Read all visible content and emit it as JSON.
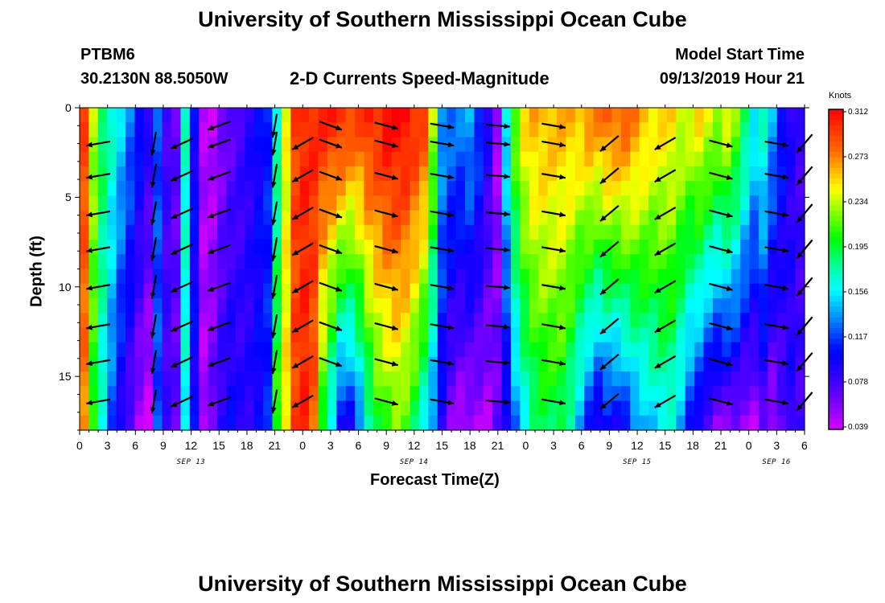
{
  "page": {
    "title_top": "University of Southern Mississippi Ocean Cube",
    "title_bottom": "University of Southern Mississippi Ocean Cube",
    "station": "PTBM6",
    "location": "30.2130N 88.5050W",
    "subtitle": "2-D Currents Speed-Magnitude",
    "model_label": "Model Start Time",
    "model_time": "09/13/2019 Hour 21"
  },
  "chart_data": {
    "type": "heatmap",
    "title": "2-D Currents Speed-Magnitude",
    "xlabel": "Forecast Time(Z)",
    "ylabel": "Depth (ft)",
    "x_ticks": [
      "0",
      "3",
      "6",
      "9",
      "12",
      "15",
      "18",
      "21",
      "0",
      "3",
      "6",
      "9",
      "12",
      "15",
      "18",
      "21",
      "0",
      "3",
      "6",
      "9",
      "12",
      "15",
      "18",
      "21",
      "0",
      "3",
      "6"
    ],
    "x_hours_range": [
      0,
      78
    ],
    "date_labels": [
      {
        "label": "SEP 13",
        "hour": 12
      },
      {
        "label": "SEP 14",
        "hour": 36
      },
      {
        "label": "SEP 15",
        "hour": 60
      },
      {
        "label": "SEP 16",
        "hour": 75
      }
    ],
    "y_ticks": [
      "0",
      "5",
      "10",
      "15"
    ],
    "y_tick_values": [
      0,
      5,
      10,
      15
    ],
    "ylim": [
      0,
      18
    ],
    "colorbar": {
      "unit": "Knots",
      "ticks": [
        "0.312",
        "0.273",
        "0.234",
        "0.195",
        "0.156",
        "0.117",
        "0.078",
        "0.039"
      ],
      "range": [
        0.039,
        0.312
      ]
    },
    "speed_profile_by_hour": [
      {
        "hour": 0,
        "surface": 0.29,
        "bottom": 0.27
      },
      {
        "hour": 1,
        "surface": 0.23,
        "bottom": 0.2
      },
      {
        "hour": 2,
        "surface": 0.19,
        "bottom": 0.16
      },
      {
        "hour": 3,
        "surface": 0.17,
        "bottom": 0.12
      },
      {
        "hour": 4,
        "surface": 0.15,
        "bottom": 0.09
      },
      {
        "hour": 5,
        "surface": 0.13,
        "bottom": 0.07
      },
      {
        "hour": 6,
        "surface": 0.11,
        "bottom": 0.05
      },
      {
        "hour": 7,
        "surface": 0.09,
        "bottom": 0.04
      },
      {
        "hour": 8,
        "surface": 0.12,
        "bottom": 0.12
      },
      {
        "hour": 9,
        "surface": 0.08,
        "bottom": 0.08
      },
      {
        "hour": 10,
        "surface": 0.07,
        "bottom": 0.07
      },
      {
        "hour": 11,
        "surface": 0.17,
        "bottom": 0.16
      },
      {
        "hour": 12,
        "surface": 0.1,
        "bottom": 0.1
      },
      {
        "hour": 13,
        "surface": 0.05,
        "bottom": 0.05
      },
      {
        "hour": 14,
        "surface": 0.045,
        "bottom": 0.07
      },
      {
        "hour": 15,
        "surface": 0.06,
        "bottom": 0.09
      },
      {
        "hour": 16,
        "surface": 0.07,
        "bottom": 0.1
      },
      {
        "hour": 17,
        "surface": 0.08,
        "bottom": 0.09
      },
      {
        "hour": 18,
        "surface": 0.09,
        "bottom": 0.09
      },
      {
        "hour": 19,
        "surface": 0.1,
        "bottom": 0.1
      },
      {
        "hour": 20,
        "surface": 0.11,
        "bottom": 0.11
      },
      {
        "hour": 21,
        "surface": 0.17,
        "bottom": 0.21
      },
      {
        "hour": 22,
        "surface": 0.24,
        "bottom": 0.25
      },
      {
        "hour": 23,
        "surface": 0.29,
        "bottom": 0.29
      },
      {
        "hour": 24,
        "surface": 0.3,
        "bottom": 0.3
      },
      {
        "hour": 25,
        "surface": 0.3,
        "bottom": 0.28
      },
      {
        "hour": 26,
        "surface": 0.3,
        "bottom": 0.2
      },
      {
        "hour": 27,
        "surface": 0.3,
        "bottom": 0.15
      },
      {
        "hour": 28,
        "surface": 0.3,
        "bottom": 0.1
      },
      {
        "hour": 29,
        "surface": 0.29,
        "bottom": 0.1
      },
      {
        "hour": 30,
        "surface": 0.29,
        "bottom": 0.13
      },
      {
        "hour": 31,
        "surface": 0.3,
        "bottom": 0.17
      },
      {
        "hour": 32,
        "surface": 0.3,
        "bottom": 0.2
      },
      {
        "hour": 33,
        "surface": 0.31,
        "bottom": 0.21
      },
      {
        "hour": 34,
        "surface": 0.31,
        "bottom": 0.22
      },
      {
        "hour": 35,
        "surface": 0.31,
        "bottom": 0.21
      },
      {
        "hour": 36,
        "surface": 0.3,
        "bottom": 0.19
      },
      {
        "hour": 37,
        "surface": 0.29,
        "bottom": 0.16
      },
      {
        "hour": 38,
        "surface": 0.23,
        "bottom": 0.13
      },
      {
        "hour": 39,
        "surface": 0.14,
        "bottom": 0.09
      },
      {
        "hour": 40,
        "surface": 0.13,
        "bottom": 0.06
      },
      {
        "hour": 41,
        "surface": 0.13,
        "bottom": 0.05
      },
      {
        "hour": 42,
        "surface": 0.14,
        "bottom": 0.05
      },
      {
        "hour": 43,
        "surface": 0.12,
        "bottom": 0.05
      },
      {
        "hour": 44,
        "surface": 0.09,
        "bottom": 0.05
      },
      {
        "hour": 45,
        "surface": 0.05,
        "bottom": 0.07
      },
      {
        "hour": 46,
        "surface": 0.16,
        "bottom": 0.09
      },
      {
        "hour": 47,
        "surface": 0.22,
        "bottom": 0.13
      },
      {
        "hour": 48,
        "surface": 0.25,
        "bottom": 0.16
      },
      {
        "hour": 49,
        "surface": 0.26,
        "bottom": 0.18
      },
      {
        "hour": 50,
        "surface": 0.26,
        "bottom": 0.19
      },
      {
        "hour": 51,
        "surface": 0.26,
        "bottom": 0.19
      },
      {
        "hour": 52,
        "surface": 0.26,
        "bottom": 0.19
      },
      {
        "hour": 53,
        "surface": 0.26,
        "bottom": 0.17
      },
      {
        "hour": 54,
        "surface": 0.26,
        "bottom": 0.14
      },
      {
        "hour": 55,
        "surface": 0.27,
        "bottom": 0.11
      },
      {
        "hour": 56,
        "surface": 0.27,
        "bottom": 0.09
      },
      {
        "hour": 57,
        "surface": 0.28,
        "bottom": 0.1
      },
      {
        "hour": 58,
        "surface": 0.28,
        "bottom": 0.1
      },
      {
        "hour": 59,
        "surface": 0.28,
        "bottom": 0.11
      },
      {
        "hour": 60,
        "surface": 0.27,
        "bottom": 0.13
      },
      {
        "hour": 61,
        "surface": 0.26,
        "bottom": 0.14
      },
      {
        "hour": 62,
        "surface": 0.25,
        "bottom": 0.15
      },
      {
        "hour": 63,
        "surface": 0.25,
        "bottom": 0.16
      },
      {
        "hour": 64,
        "surface": 0.25,
        "bottom": 0.16
      },
      {
        "hour": 65,
        "surface": 0.24,
        "bottom": 0.14
      },
      {
        "hour": 66,
        "surface": 0.24,
        "bottom": 0.11
      },
      {
        "hour": 67,
        "surface": 0.25,
        "bottom": 0.09
      },
      {
        "hour": 68,
        "surface": 0.24,
        "bottom": 0.07
      },
      {
        "hour": 69,
        "surface": 0.23,
        "bottom": 0.06
      },
      {
        "hour": 70,
        "surface": 0.24,
        "bottom": 0.06
      },
      {
        "hour": 71,
        "surface": 0.22,
        "bottom": 0.06
      },
      {
        "hour": 72,
        "surface": 0.19,
        "bottom": 0.05
      },
      {
        "hour": 73,
        "surface": 0.16,
        "bottom": 0.05
      },
      {
        "hour": 74,
        "surface": 0.17,
        "bottom": 0.07
      },
      {
        "hour": 75,
        "surface": 0.14,
        "bottom": 0.05
      },
      {
        "hour": 76,
        "surface": 0.11,
        "bottom": 0.07
      },
      {
        "hour": 77,
        "surface": 0.09,
        "bottom": 0.09
      },
      {
        "hour": 78,
        "surface": 0.08,
        "bottom": 0.08
      }
    ],
    "vector_rows_depth_ft": [
      1.0,
      2.0,
      3.8,
      5.9,
      7.9,
      10.0,
      12.2,
      14.2,
      16.4
    ],
    "vectors": [
      {
        "hour": 2,
        "dir_deg": 170,
        "rows": [
          1,
          2,
          3,
          4,
          5,
          6,
          7,
          8
        ]
      },
      {
        "hour": 8,
        "dir_deg": 100,
        "rows": [
          1,
          2,
          3,
          4,
          5,
          6,
          7,
          8
        ]
      },
      {
        "hour": 11,
        "dir_deg": 155,
        "rows": [
          1,
          2,
          3,
          4,
          5,
          6,
          7,
          8
        ]
      },
      {
        "hour": 15,
        "dir_deg": 160,
        "rows": [
          0,
          1,
          2,
          3,
          4,
          5,
          6,
          7,
          8
        ]
      },
      {
        "hour": 21,
        "dir_deg": 100,
        "rows": [
          0,
          1,
          2,
          3,
          4,
          5,
          6,
          7,
          8
        ]
      },
      {
        "hour": 24,
        "dir_deg": 150,
        "rows": [
          1,
          2,
          3,
          4,
          5,
          6,
          7,
          8
        ]
      },
      {
        "hour": 27,
        "dir_deg": 20,
        "rows": [
          0,
          1,
          2,
          3,
          4,
          5,
          6,
          7
        ]
      },
      {
        "hour": 33,
        "dir_deg": 15,
        "rows": [
          0,
          1,
          2,
          3,
          4,
          5,
          6,
          7,
          8
        ]
      },
      {
        "hour": 39,
        "dir_deg": 10,
        "rows": [
          0,
          1,
          2,
          3,
          4,
          5,
          6,
          7,
          8
        ]
      },
      {
        "hour": 45,
        "dir_deg": 5,
        "rows": [
          0,
          1,
          2,
          3,
          4,
          5,
          6,
          7,
          8
        ]
      },
      {
        "hour": 51,
        "dir_deg": 10,
        "rows": [
          0,
          1,
          2,
          3,
          4,
          5,
          6,
          7,
          8
        ]
      },
      {
        "hour": 57,
        "dir_deg": 140,
        "rows": [
          1,
          2,
          3,
          4,
          5,
          6,
          7,
          8
        ]
      },
      {
        "hour": 63,
        "dir_deg": 150,
        "rows": [
          1,
          2,
          3,
          4,
          5,
          6,
          7,
          8
        ]
      },
      {
        "hour": 69,
        "dir_deg": 15,
        "rows": [
          1,
          2,
          3,
          4,
          5,
          6,
          7,
          8
        ]
      },
      {
        "hour": 75,
        "dir_deg": 10,
        "rows": [
          1,
          2,
          3,
          4,
          5,
          6,
          7,
          8
        ]
      },
      {
        "hour": 78,
        "dir_deg": 130,
        "rows": [
          1,
          2,
          3,
          4,
          5,
          6,
          7,
          8
        ]
      }
    ]
  }
}
